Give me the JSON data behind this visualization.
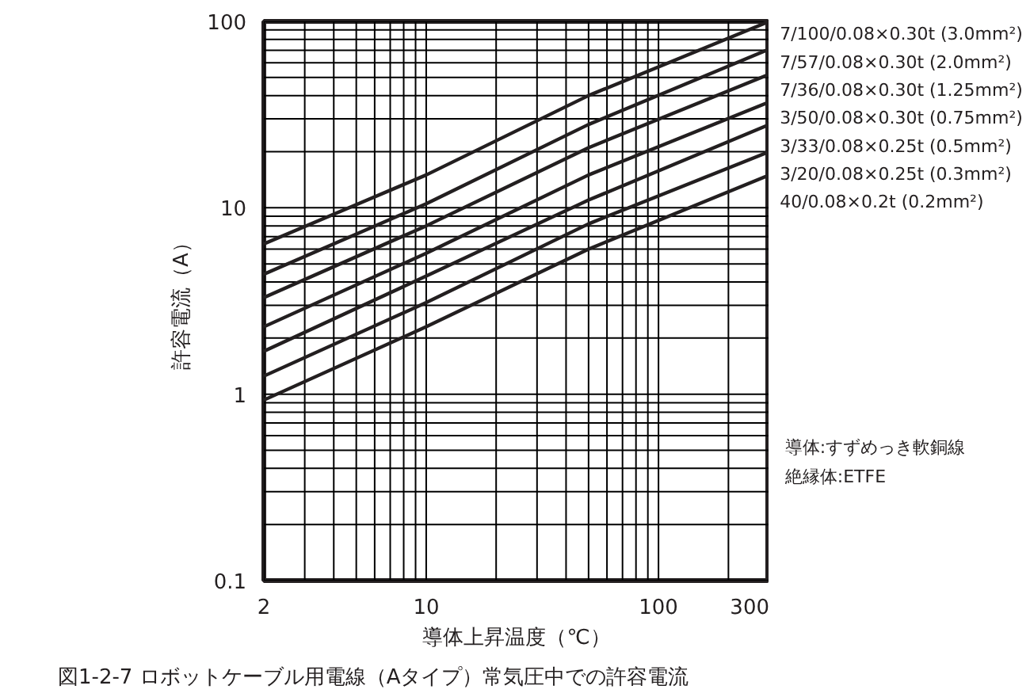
{
  "chart_data": {
    "type": "line",
    "title": "図1-2-7  ロボットケーブル用電線（Aタイプ）常気圧中での許容電流",
    "xlabel": "導体上昇温度（℃）",
    "ylabel": "許容電流（A）",
    "annotations": [
      "導体:すずめっき軟銅線",
      "絶縁体:ETFE"
    ],
    "x": [
      2,
      10,
      50,
      300
    ],
    "log": "xy",
    "grid": true,
    "marker": "none",
    "line_style": "solid",
    "xlim": [
      2,
      300
    ],
    "ylim": [
      0.1,
      100
    ],
    "xticks": [
      2,
      {
        "value": 3,
        "label": null
      },
      {
        "value": 4,
        "label": null
      },
      {
        "value": 5,
        "label": null
      },
      {
        "value": 6,
        "label": null
      },
      {
        "value": 7,
        "label": null
      },
      {
        "value": 8,
        "label": null
      },
      {
        "value": 9,
        "label": null
      },
      10,
      {
        "value": 20,
        "label": null
      },
      {
        "value": 30,
        "label": null
      },
      {
        "value": 40,
        "label": null
      },
      {
        "value": 50,
        "label": null
      },
      {
        "value": 60,
        "label": null
      },
      {
        "value": 70,
        "label": null
      },
      {
        "value": 80,
        "label": null
      },
      {
        "value": 90,
        "label": null
      },
      100,
      {
        "value": 200,
        "label": null
      },
      300
    ],
    "yticks": [
      0.1,
      {
        "value": 0.2,
        "label": null
      },
      {
        "value": 0.3,
        "label": null
      },
      {
        "value": 0.4,
        "label": null
      },
      {
        "value": 0.5,
        "label": null
      },
      {
        "value": 0.6,
        "label": null
      },
      {
        "value": 0.7,
        "label": null
      },
      {
        "value": 0.8,
        "label": null
      },
      {
        "value": 0.9,
        "label": null
      },
      1,
      {
        "value": 2,
        "label": null
      },
      {
        "value": 3,
        "label": null
      },
      {
        "value": 4,
        "label": null
      },
      {
        "value": 5,
        "label": null
      },
      {
        "value": 6,
        "label": null
      },
      {
        "value": 7,
        "label": null
      },
      {
        "value": 8,
        "label": null
      },
      {
        "value": 9,
        "label": null
      },
      10,
      {
        "value": 20,
        "label": null
      },
      {
        "value": 30,
        "label": null
      },
      {
        "value": 40,
        "label": null
      },
      {
        "value": 50,
        "label": null
      },
      {
        "value": 60,
        "label": null
      },
      {
        "value": 70,
        "label": null
      },
      {
        "value": 80,
        "label": null
      },
      {
        "value": 90,
        "label": null
      },
      100
    ],
    "series": [
      {
        "name": "7/100/0.08×0.30t (3.0mm²)",
        "color": "#231f20",
        "values": [
          6.4,
          15,
          40,
          100
        ]
      },
      {
        "name": "7/57/0.08×0.30t (2.0mm²)",
        "color": "#231f20",
        "values": [
          4.4,
          10.5,
          28,
          71
        ]
      },
      {
        "name": "7/36/0.08×0.30t (1.25mm²)",
        "color": "#231f20",
        "values": [
          3.3,
          8,
          21,
          52
        ]
      },
      {
        "name": "3/50/0.08×0.30t (0.75mm²)",
        "color": "#231f20",
        "values": [
          2.3,
          5.7,
          15,
          37
        ]
      },
      {
        "name": "3/33/0.08×0.25t (0.5mm²)",
        "color": "#231f20",
        "values": [
          1.7,
          4.3,
          11,
          28
        ]
      },
      {
        "name": "3/20/0.08×0.25t (0.3mm²)",
        "color": "#231f20",
        "values": [
          1.25,
          3.1,
          8.2,
          20
        ]
      },
      {
        "name": "40/0.08×0.2t (0.2mm²)",
        "color": "#231f20",
        "values": [
          0.93,
          2.3,
          6,
          15
        ]
      }
    ]
  }
}
